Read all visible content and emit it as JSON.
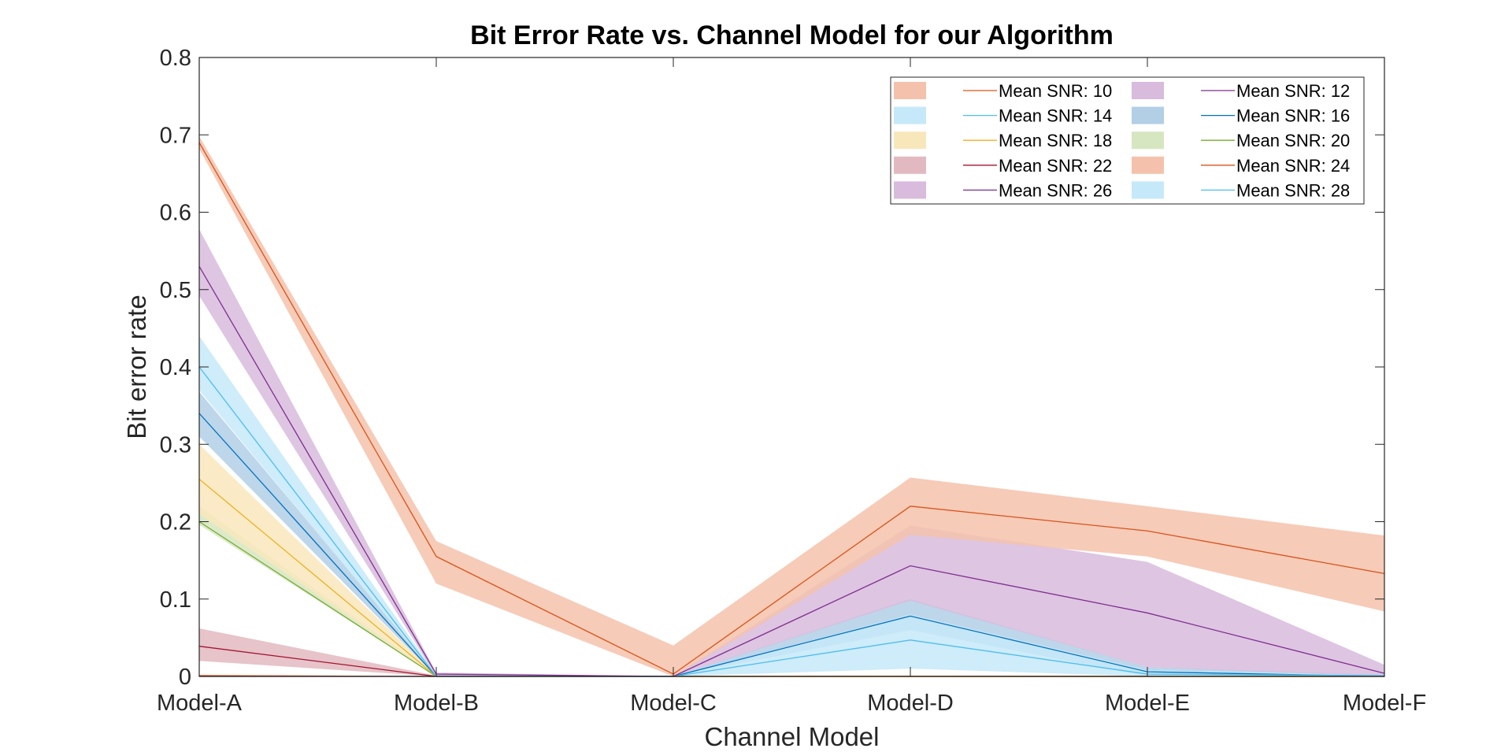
{
  "chart_data": {
    "type": "line",
    "title": "Bit Error Rate vs. Channel Model for our Algorithm",
    "xlabel": "Channel Model",
    "ylabel": "Bit error rate",
    "categories": [
      "Model-A",
      "Model-B",
      "Model-C",
      "Model-D",
      "Model-E",
      "Model-F"
    ],
    "ylim": [
      0,
      0.8
    ],
    "yticks": [
      "0",
      "0.1",
      "0.2",
      "0.3",
      "0.4",
      "0.5",
      "0.6",
      "0.7",
      "0.8"
    ],
    "grid": false,
    "legend_position": "top-right",
    "series": [
      {
        "name": "Mean SNR: 10",
        "color": "#D95319",
        "fill": "#F4C2AC",
        "values": [
          0.69,
          0.155,
          0.003,
          0.22,
          0.188,
          0.133
        ],
        "lower": [
          0.682,
          0.12,
          0.0,
          0.183,
          0.155,
          0.084
        ],
        "upper": [
          0.698,
          0.175,
          0.04,
          0.257,
          0.22,
          0.182
        ]
      },
      {
        "name": "Mean SNR: 12",
        "color": "#7E2F8E",
        "fill": "#D8BBDD",
        "values": [
          0.53,
          0.003,
          0.0,
          0.143,
          0.082,
          0.004
        ],
        "lower": [
          0.492,
          0.0,
          0.0,
          0.098,
          0.012,
          0.0
        ],
        "upper": [
          0.578,
          0.005,
          0.0,
          0.195,
          0.148,
          0.015
        ]
      },
      {
        "name": "Mean SNR: 14",
        "color": "#4DBEEE",
        "fill": "#C6E9F9",
        "values": [
          0.4,
          0.0,
          0.0,
          0.047,
          0.003,
          0.001
        ],
        "lower": [
          0.37,
          0.0,
          0.0,
          0.01,
          0.0,
          0.0
        ],
        "upper": [
          0.44,
          0.002,
          0.0,
          0.08,
          0.008,
          0.002
        ]
      },
      {
        "name": "Mean SNR: 16",
        "color": "#0072BD",
        "fill": "#B2CFE6",
        "values": [
          0.34,
          0.0,
          0.0,
          0.078,
          0.006,
          0.0
        ],
        "lower": [
          0.31,
          0.0,
          0.0,
          0.06,
          0.0,
          0.0
        ],
        "upper": [
          0.368,
          0.002,
          0.0,
          0.1,
          0.012,
          0.002
        ]
      },
      {
        "name": "Mean SNR: 18",
        "color": "#EDB120",
        "fill": "#F9E7BC",
        "values": [
          0.255,
          0.0,
          0.0,
          0.0,
          0.0,
          0.0
        ],
        "lower": [
          0.21,
          0.0,
          0.0,
          0.0,
          0.0,
          0.0
        ],
        "upper": [
          0.3,
          0.001,
          0.0,
          0.001,
          0.0,
          0.0
        ]
      },
      {
        "name": "Mean SNR: 20",
        "color": "#77AC30",
        "fill": "#D6E6C1",
        "values": [
          0.2,
          0.0,
          0.0,
          0.0,
          0.0,
          0.0
        ],
        "lower": [
          0.196,
          0.0,
          0.0,
          0.0,
          0.0,
          0.0
        ],
        "upper": [
          0.22,
          0.001,
          0.0,
          0.001,
          0.0,
          0.0
        ]
      },
      {
        "name": "Mean SNR: 22",
        "color": "#A2142F",
        "fill": "#E3B9C1",
        "values": [
          0.039,
          0.0,
          0.0,
          0.0,
          0.0,
          0.0
        ],
        "lower": [
          0.02,
          0.0,
          0.0,
          0.0,
          0.0,
          0.0
        ],
        "upper": [
          0.062,
          0.001,
          0.0,
          0.0,
          0.0,
          0.0
        ]
      },
      {
        "name": "Mean SNR: 24",
        "color": "#D95319",
        "fill": "#F4C2AC",
        "values": [
          0.001,
          0.0,
          0.0,
          0.0,
          0.0,
          0.0
        ],
        "lower": [
          0.0,
          0.0,
          0.0,
          0.0,
          0.0,
          0.0
        ],
        "upper": [
          0.002,
          0.0,
          0.0,
          0.0,
          0.0,
          0.0
        ]
      },
      {
        "name": "Mean SNR: 26",
        "color": "#7E2F8E",
        "fill": "#D8BBDD",
        "values": [
          0.0,
          0.0,
          0.0,
          0.0,
          0.0,
          0.0
        ],
        "lower": [
          0.0,
          0.0,
          0.0,
          0.0,
          0.0,
          0.0
        ],
        "upper": [
          0.001,
          0.0,
          0.0,
          0.0,
          0.0,
          0.0
        ]
      },
      {
        "name": "Mean SNR: 28",
        "color": "#4DBEEE",
        "fill": "#C6E9F9",
        "values": [
          0.0,
          0.0,
          0.0,
          0.0,
          0.0,
          0.0
        ],
        "lower": [
          0.0,
          0.0,
          0.0,
          0.0,
          0.0,
          0.0
        ],
        "upper": [
          0.0,
          0.0,
          0.0,
          0.0,
          0.0,
          0.0
        ]
      }
    ]
  }
}
